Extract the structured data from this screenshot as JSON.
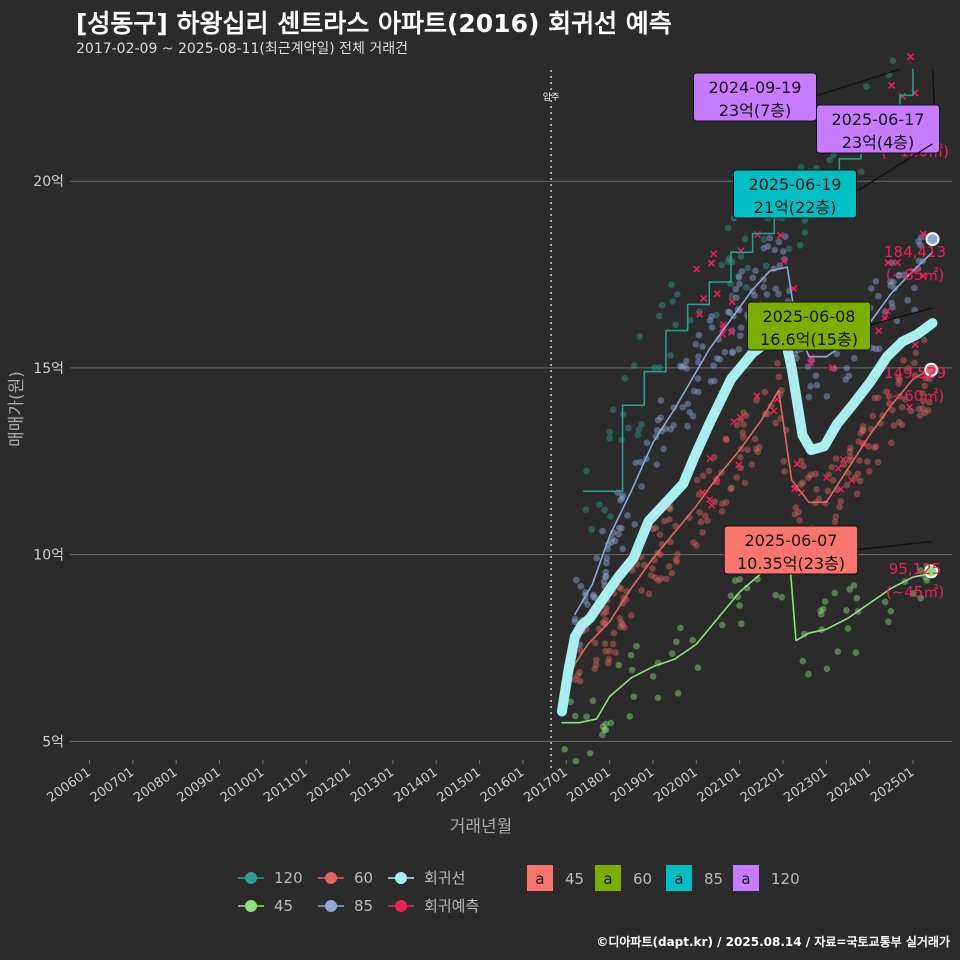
{
  "header": {
    "title": "[성동구] 하왕십리 센트라스 아파트(2016) 회귀선 예측",
    "subtitle": "2017-02-09 ~ 2025-08-11(최근계약일) 전체 거래건"
  },
  "footer": "©디아파트(dapt.kr) / 2025.08.14 / 자료=국토교통부 실거래가",
  "colors": {
    "s120": "#2a9d8f",
    "s60": "#e06666",
    "s45": "#8fdf7a",
    "s85": "#8ea9d6",
    "regression": "#a8eeee",
    "predict": "#ee1f5a",
    "box45": "#f8766d",
    "box60": "#7cae00",
    "box85": "#00bfc4",
    "box120": "#c77cff"
  },
  "chart_data": {
    "type": "line",
    "xlabel": "거래년월",
    "ylabel": "매매가(원)",
    "x_ticks": [
      "200601",
      "200701",
      "200801",
      "200901",
      "201001",
      "201101",
      "201201",
      "201301",
      "201401",
      "201501",
      "201601",
      "201701",
      "201801",
      "201901",
      "202001",
      "202101",
      "202201",
      "202301",
      "202401",
      "202501"
    ],
    "y_ticks": [
      {
        "value": 5,
        "label": "5억"
      },
      {
        "value": 10,
        "label": "10억"
      },
      {
        "value": 15,
        "label": "15억"
      },
      {
        "value": 20,
        "label": "20억"
      }
    ],
    "x_range": [
      2005.55,
      2025.9
    ],
    "y_range": [
      4.5,
      23.3
    ],
    "vline": {
      "x": 2016.65,
      "label": "입주"
    },
    "series": [
      {
        "key": "s120",
        "name": "120",
        "points": [
          [
            2017.4,
            11.7
          ],
          [
            2017.9,
            11.7
          ],
          [
            2018.3,
            14.0
          ],
          [
            2018.8,
            14.9
          ],
          [
            2019.3,
            16.0
          ],
          [
            2019.8,
            16.7
          ],
          [
            2020.3,
            17.3
          ],
          [
            2020.8,
            18.1
          ],
          [
            2021.3,
            18.6
          ],
          [
            2021.8,
            19.4
          ],
          [
            2022.3,
            19.4
          ],
          [
            2022.8,
            20.0
          ],
          [
            2023.3,
            20.6
          ],
          [
            2023.8,
            21.3
          ],
          [
            2024.3,
            21.9
          ],
          [
            2024.7,
            22.3
          ],
          [
            2025.0,
            23.0
          ]
        ]
      },
      {
        "key": "s85",
        "name": "85",
        "points": [
          [
            2017.2,
            8.4
          ],
          [
            2017.6,
            9.2
          ],
          [
            2018.0,
            10.5
          ],
          [
            2018.5,
            11.7
          ],
          [
            2019.0,
            13.0
          ],
          [
            2019.5,
            13.9
          ],
          [
            2019.9,
            14.7
          ],
          [
            2020.3,
            15.5
          ],
          [
            2020.8,
            16.3
          ],
          [
            2021.3,
            17.1
          ],
          [
            2021.7,
            17.6
          ],
          [
            2022.1,
            17.7
          ],
          [
            2022.3,
            16.2
          ],
          [
            2022.6,
            15.3
          ],
          [
            2023.0,
            15.3
          ],
          [
            2023.5,
            15.7
          ],
          [
            2024.0,
            16.2
          ],
          [
            2024.5,
            17.0
          ],
          [
            2025.0,
            17.6
          ],
          [
            2025.45,
            18.1
          ]
        ]
      },
      {
        "key": "s60",
        "name": "60",
        "points": [
          [
            2017.1,
            6.9
          ],
          [
            2017.5,
            7.6
          ],
          [
            2018.0,
            8.2
          ],
          [
            2018.5,
            9.1
          ],
          [
            2019.0,
            9.9
          ],
          [
            2019.5,
            10.6
          ],
          [
            2020.0,
            11.3
          ],
          [
            2020.5,
            12.1
          ],
          [
            2021.0,
            12.8
          ],
          [
            2021.5,
            13.6
          ],
          [
            2021.9,
            14.4
          ],
          [
            2022.2,
            12.0
          ],
          [
            2022.6,
            11.4
          ],
          [
            2023.0,
            11.4
          ],
          [
            2023.5,
            12.3
          ],
          [
            2024.0,
            13.2
          ],
          [
            2024.5,
            14.0
          ],
          [
            2025.0,
            14.7
          ],
          [
            2025.45,
            15.0
          ]
        ]
      },
      {
        "key": "s45",
        "name": "45",
        "points": [
          [
            2016.9,
            5.5
          ],
          [
            2017.3,
            5.5
          ],
          [
            2017.7,
            5.6
          ],
          [
            2018.0,
            6.2
          ],
          [
            2018.5,
            6.7
          ],
          [
            2019.0,
            7.0
          ],
          [
            2019.5,
            7.2
          ],
          [
            2020.0,
            7.6
          ],
          [
            2020.5,
            8.3
          ],
          [
            2021.0,
            9.0
          ],
          [
            2021.5,
            9.5
          ],
          [
            2022.0,
            9.7
          ],
          [
            2022.15,
            9.9
          ],
          [
            2022.3,
            7.7
          ],
          [
            2022.6,
            7.9
          ],
          [
            2023.0,
            8.0
          ],
          [
            2023.5,
            8.3
          ],
          [
            2024.0,
            8.7
          ],
          [
            2024.5,
            9.1
          ],
          [
            2025.0,
            9.4
          ],
          [
            2025.45,
            9.5
          ]
        ]
      },
      {
        "key": "regression",
        "name": "회귀선",
        "points": [
          [
            2016.9,
            5.8
          ],
          [
            2017.05,
            6.9
          ],
          [
            2017.2,
            7.8
          ],
          [
            2017.35,
            8.1
          ],
          [
            2017.55,
            8.3
          ],
          [
            2017.9,
            8.9
          ],
          [
            2018.2,
            9.4
          ],
          [
            2018.55,
            9.9
          ],
          [
            2018.9,
            10.9
          ],
          [
            2019.3,
            11.4
          ],
          [
            2019.7,
            11.9
          ],
          [
            2019.95,
            12.6
          ],
          [
            2020.3,
            13.5
          ],
          [
            2020.8,
            14.7
          ],
          [
            2021.3,
            15.4
          ],
          [
            2021.75,
            15.8
          ],
          [
            2021.95,
            16.3
          ],
          [
            2022.2,
            15.0
          ],
          [
            2022.45,
            13.2
          ],
          [
            2022.65,
            12.8
          ],
          [
            2022.95,
            12.9
          ],
          [
            2023.25,
            13.5
          ],
          [
            2023.6,
            14.0
          ],
          [
            2024.0,
            14.6
          ],
          [
            2024.4,
            15.3
          ],
          [
            2024.75,
            15.7
          ],
          [
            2025.1,
            15.9
          ],
          [
            2025.45,
            16.2
          ]
        ]
      }
    ],
    "scatter_note": "dense individual trade points per size group",
    "end_markers": [
      {
        "series": "s85",
        "x": 2025.45,
        "y": 18.45
      },
      {
        "series": "s60",
        "x": 2025.42,
        "y": 14.95
      },
      {
        "series": "s45",
        "x": 2025.42,
        "y": 9.55
      }
    ],
    "predict_labels": [
      {
        "value": "184,413",
        "unit": "(~85㎡)",
        "y": 17.6
      },
      {
        "value": "149,529",
        "unit": "(~60㎡)",
        "y": 14.35
      },
      {
        "value": "95,125",
        "unit": "(~45㎡)",
        "y": 9.1
      },
      {
        "value": "…4",
        "unit": "(~120㎡)",
        "y": 20.9
      }
    ],
    "callouts": [
      {
        "date": "2024-09-19",
        "text": "23억(7층)",
        "group": "box120",
        "x": 2024.7,
        "y": 23.0,
        "box_cx": 755,
        "box_cy": 97
      },
      {
        "date": "2025-06-17",
        "text": "23억(4층)",
        "group": "box120",
        "x": 2025.45,
        "y": 23.0,
        "box_cx": 878,
        "box_cy": 129
      },
      {
        "date": "2025-06-19",
        "text": "21억(22층)",
        "group": "box85",
        "x": 2025.45,
        "y": 21.0,
        "box_cx": 795,
        "box_cy": 194
      },
      {
        "date": "2025-06-08",
        "text": "16.6억(15층)",
        "group": "box60",
        "x": 2025.43,
        "y": 16.6,
        "box_cx": 809,
        "box_cy": 326
      },
      {
        "date": "2025-06-07",
        "text": "10.35억(23층)",
        "group": "box45",
        "x": 2025.43,
        "y": 10.35,
        "box_cx": 791,
        "box_cy": 550
      }
    ],
    "legend": {
      "lines": [
        {
          "key": "s120",
          "label": "120"
        },
        {
          "key": "s60",
          "label": "60"
        },
        {
          "key": "regression",
          "label": "회귀선"
        },
        {
          "key": "s45",
          "label": "45"
        },
        {
          "key": "s85",
          "label": "85"
        },
        {
          "key": "predict",
          "label": "회귀예측"
        }
      ],
      "boxes": [
        {
          "key": "box45",
          "glyph": "a",
          "label": "45"
        },
        {
          "key": "box60",
          "glyph": "a",
          "label": "60"
        },
        {
          "key": "box85",
          "glyph": "a",
          "label": "85"
        },
        {
          "key": "box120",
          "glyph": "a",
          "label": "120"
        }
      ]
    }
  }
}
